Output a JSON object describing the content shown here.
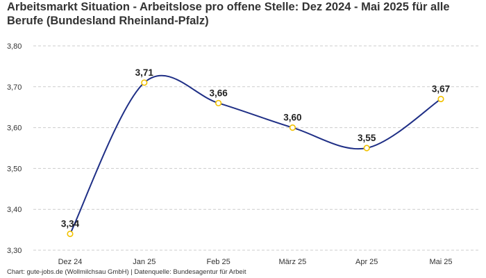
{
  "chart_data": {
    "type": "line",
    "title": "Arbeitsmarkt Situation - Arbeitslose pro offene Stelle: Dez 2024 - Mai 2025 für alle Berufe (Bundesland Rheinland-Pfalz)",
    "categories": [
      "Dez 24",
      "Jan 25",
      "Feb 25",
      "März 25",
      "Apr 25",
      "Mai 25"
    ],
    "values": [
      3.34,
      3.71,
      3.66,
      3.6,
      3.55,
      3.67
    ],
    "value_labels": [
      "3,34",
      "3,71",
      "3,66",
      "3,60",
      "3,55",
      "3,67"
    ],
    "ylim": [
      3.3,
      3.8
    ],
    "yticks": [
      3.3,
      3.4,
      3.5,
      3.6,
      3.7,
      3.8
    ],
    "ytick_labels": [
      "3,30",
      "3,40",
      "3,50",
      "3,60",
      "3,70",
      "3,80"
    ],
    "xlabel": "",
    "ylabel": "",
    "grid": true,
    "line_color": "#1f2f86",
    "marker_color": "#f2c200",
    "grid_color": "#cccccc"
  },
  "footer": "Chart: gute-jobs.de (Wollmilchsau GmbH) | Datenquelle: Bundesagentur für Arbeit"
}
